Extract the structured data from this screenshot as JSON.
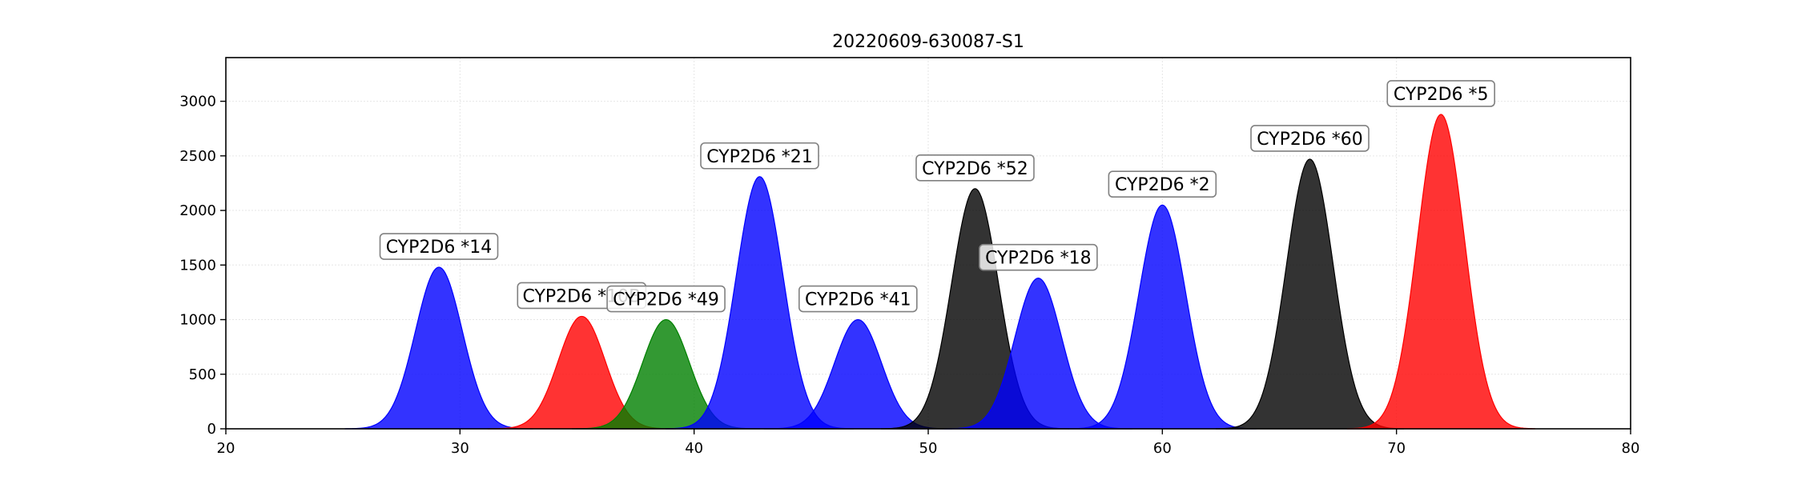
{
  "chart_data": {
    "type": "area",
    "title": "20220609-630087-S1",
    "xlabel": "",
    "ylabel": "",
    "xlim": [
      20,
      80
    ],
    "ylim": [
      0,
      3400
    ],
    "xticks": [
      20,
      30,
      40,
      50,
      60,
      70,
      80
    ],
    "yticks": [
      0,
      500,
      1000,
      1500,
      2000,
      2500,
      3000
    ],
    "grid": true,
    "series": [
      {
        "label": "CYP2D6 *14",
        "center": 29.1,
        "height": 1480,
        "color": "#0000ff"
      },
      {
        "label": "CYP2D6 *10B",
        "center": 35.2,
        "height": 1030,
        "color": "#ff0000"
      },
      {
        "label": "CYP2D6 *49",
        "center": 38.8,
        "height": 1000,
        "color": "#008000"
      },
      {
        "label": "CYP2D6 *21",
        "center": 42.8,
        "height": 2310,
        "color": "#0000ff"
      },
      {
        "label": "CYP2D6 *41",
        "center": 47.0,
        "height": 1000,
        "color": "#0000ff"
      },
      {
        "label": "CYP2D6 *52",
        "center": 52.0,
        "height": 2200,
        "color": "#000000"
      },
      {
        "label": "CYP2D6 *18",
        "center": 54.7,
        "height": 1380,
        "color": "#0000ff"
      },
      {
        "label": "CYP2D6 *2",
        "center": 60.0,
        "height": 2050,
        "color": "#0000ff"
      },
      {
        "label": "CYP2D6 *60",
        "center": 66.3,
        "height": 2470,
        "color": "#000000"
      },
      {
        "label": "CYP2D6 *5",
        "center": 71.9,
        "height": 2880,
        "color": "#ff0000"
      }
    ]
  }
}
